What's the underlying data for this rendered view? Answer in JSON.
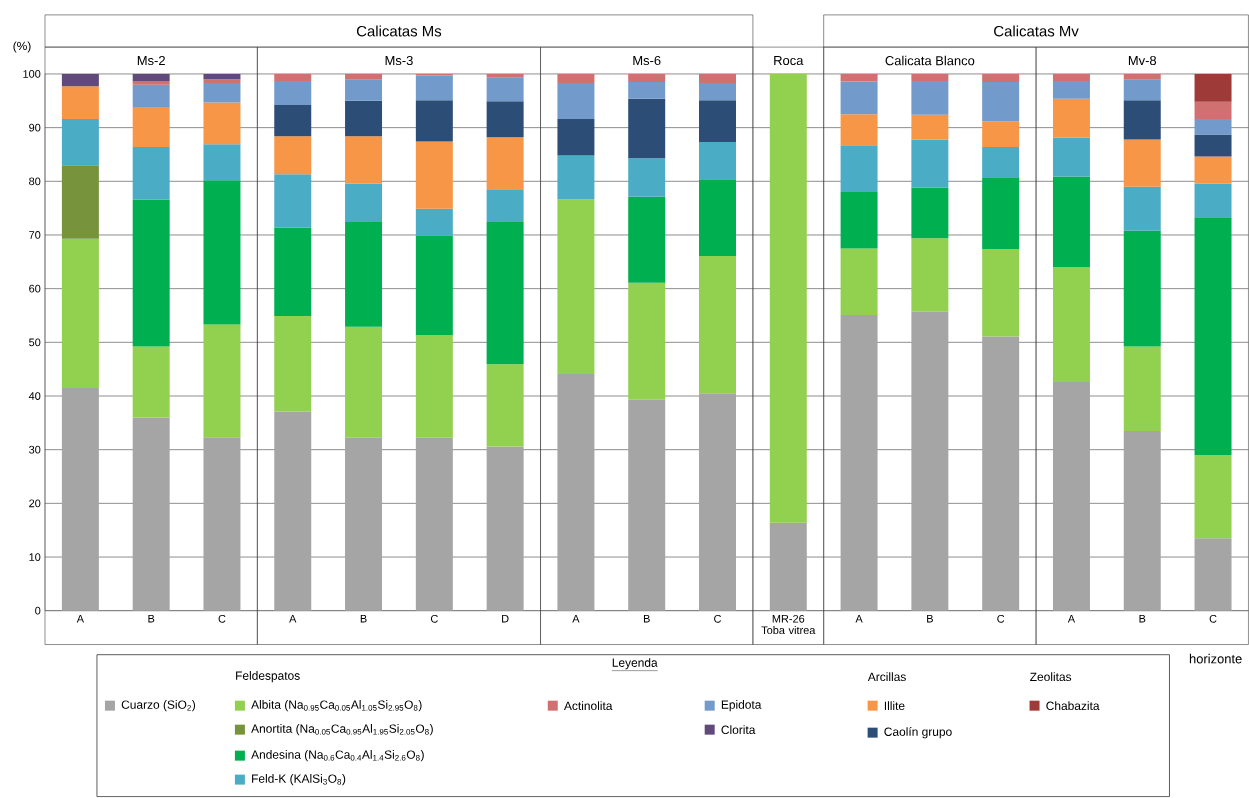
{
  "chart_data": {
    "type": "bar",
    "stacked": true,
    "ylabel": "(%)",
    "xlabel": "horizonte",
    "legend_title": "Leyenda",
    "categories": [
      "A",
      "B",
      "C",
      "A",
      "B",
      "C",
      "D",
      "A",
      "B",
      "C",
      "MR-26 Toba vitrea",
      "A",
      "B",
      "C",
      "A",
      "B",
      "C"
    ],
    "series": [
      {
        "name": "Cuarzo (SiO$_{2}$)",
        "color": "#a5a5a5",
        "values": [
          41.5,
          36.0,
          32.3,
          37.1,
          32.2,
          32.2,
          30.6,
          44.1,
          39.3,
          40.5,
          16.4,
          55.1,
          55.7,
          51.1,
          42.6,
          33.5,
          13.5
        ]
      },
      {
        "name": "Albita (Na$_{0.95}$Ca$_{0.05}$Al$_{1.05}$Si$_{2.95}$O$_{8}$)",
        "color": "#92d050",
        "values": [
          27.8,
          13.2,
          21.0,
          17.8,
          20.7,
          19.1,
          15.3,
          32.5,
          21.8,
          25.6,
          83.6,
          12.4,
          13.7,
          16.3,
          21.4,
          15.7,
          15.5
        ]
      },
      {
        "name": "Anortita (Na$_{0.05}$Ca$_{0.95}$Al$_{1.95}$Si$_{2.05}$O$_{8}$)",
        "color": "#77933c",
        "values": [
          13.7,
          null,
          null,
          null,
          null,
          null,
          null,
          null,
          null,
          null,
          null,
          null,
          null,
          null,
          null,
          null,
          null
        ]
      },
      {
        "name": "Andesina (Na$_{0.6}$Ca$_{0.4}$Al$_{1.4}$Si$_{2.6}$O$_{8}$)",
        "color": "#00b050",
        "values": [
          null,
          27.4,
          26.9,
          16.5,
          19.5,
          18.6,
          26.5,
          null,
          16.0,
          14.3,
          null,
          10.5,
          9.4,
          13.2,
          16.9,
          21.6,
          44.3
        ]
      },
      {
        "name": "Feld-K (KAlSi$_{3}$O$_{8}$)",
        "color": "#4bacc6",
        "values": [
          8.6,
          9.8,
          6.7,
          9.9,
          7.2,
          5.0,
          6.0,
          8.2,
          7.2,
          6.9,
          null,
          8.7,
          9.0,
          5.8,
          7.2,
          8.2,
          6.3
        ]
      },
      {
        "name": "Illite",
        "color": "#f79646",
        "values": [
          6.1,
          7.3,
          7.8,
          7.1,
          8.8,
          12.5,
          9.8,
          null,
          null,
          null,
          null,
          5.8,
          4.6,
          4.8,
          7.3,
          8.8,
          5.0
        ]
      },
      {
        "name": "Caolín grupo",
        "color": "#2c4d75",
        "values": [
          null,
          null,
          null,
          5.8,
          6.6,
          7.7,
          6.7,
          6.8,
          11.1,
          7.8,
          null,
          null,
          null,
          null,
          null,
          7.3,
          4.1
        ]
      },
      {
        "name": "Epidota",
        "color": "#729aca",
        "values": [
          null,
          4.3,
          3.6,
          4.5,
          3.9,
          4.6,
          4.5,
          6.7,
          3.1,
          3.2,
          null,
          6.1,
          6.3,
          7.3,
          3.3,
          3.8,
          2.9
        ]
      },
      {
        "name": "Actinolita",
        "color": "#d07070",
        "values": [
          null,
          0.6,
          0.7,
          1.3,
          1.1,
          0.3,
          0.6,
          1.7,
          1.5,
          1.7,
          null,
          1.4,
          1.3,
          1.5,
          1.3,
          1.1,
          3.2
        ]
      },
      {
        "name": "Clorita",
        "color": "#604a7b",
        "values": [
          2.3,
          1.4,
          1.0,
          null,
          null,
          null,
          null,
          null,
          null,
          null,
          null,
          null,
          null,
          null,
          null,
          null,
          null
        ]
      },
      {
        "name": "Chabazita",
        "color": "#9e3a38",
        "values": [
          null,
          null,
          null,
          null,
          null,
          null,
          null,
          null,
          null,
          null,
          null,
          null,
          null,
          null,
          null,
          null,
          5.2
        ]
      }
    ],
    "ylim": [
      0,
      100
    ],
    "yticks": [
      0,
      10,
      20,
      30,
      40,
      50,
      60,
      70,
      80,
      90,
      100
    ],
    "grid": "y",
    "legend": "bottom",
    "annotations": [
      "Calicatas Ms",
      "Calicatas Mv",
      "Ms-2",
      "Ms-3",
      "Ms-6",
      "Roca",
      "Calicata Blanco",
      "Mv-8",
      "Feldespatos",
      "Arcillas",
      "Zeolitas"
    ]
  }
}
